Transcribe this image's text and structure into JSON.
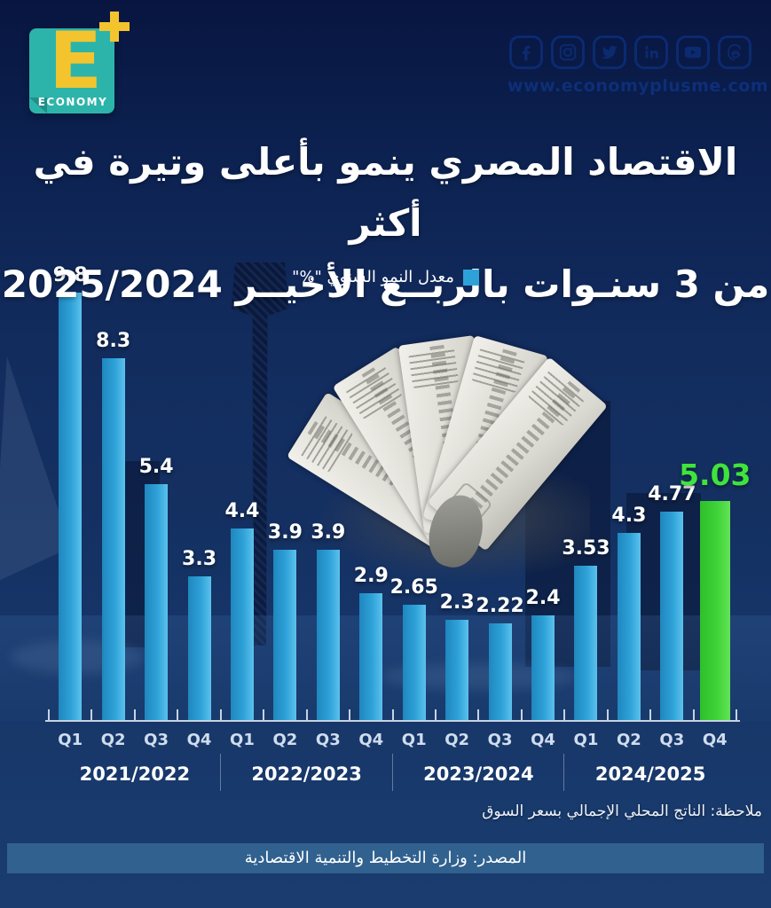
{
  "brand": {
    "logo": {
      "letter": "E",
      "caption": "ECONOMY"
    },
    "website": "www.economyplusme.com",
    "social": [
      "facebook",
      "instagram",
      "twitter",
      "linkedin",
      "youtube",
      "threads"
    ]
  },
  "title": {
    "line1": "الاقتصاد المصري ينمو بأعلى وتيرة في أكثر",
    "line2": "من 3 سنـوات بالربــع الأخيــر 2025/2024"
  },
  "legend": {
    "label": "معدل النمو السنوي \"%\""
  },
  "chart_data": {
    "type": "bar",
    "title": "معدل النمو السنوي \"%\"",
    "categories": [
      "Q1",
      "Q2",
      "Q3",
      "Q4",
      "Q1",
      "Q2",
      "Q3",
      "Q4",
      "Q1",
      "Q2",
      "Q3",
      "Q4",
      "Q1",
      "Q2",
      "Q3",
      "Q4"
    ],
    "values": [
      9.8,
      8.3,
      5.4,
      3.3,
      4.4,
      3.9,
      3.9,
      2.9,
      2.65,
      2.3,
      2.22,
      2.4,
      3.53,
      4.3,
      4.77,
      5.03
    ],
    "labels": [
      "9.8",
      "8.3",
      "5.4",
      "3.3",
      "4.4",
      "3.9",
      "3.9",
      "2.9",
      "2.65",
      "2.3",
      "2.22",
      "2.4",
      "3.53",
      "4.3",
      "4.77",
      "5.03"
    ],
    "year_groups": [
      "2021/2022",
      "2022/2023",
      "2023/2024",
      "2024/2025"
    ],
    "highlight_index": 15,
    "unit": "%",
    "ylim": [
      0,
      10
    ],
    "grid": false,
    "legend_position": "top-center",
    "bar_color": "#2ea2d8",
    "highlight_color": "#3ed337"
  },
  "footnote": "ملاحظة: الناتج المحلي الإجمالي بسعر السوق",
  "source": "المصدر: وزارة التخطيط والتنمية الاقتصادية",
  "decor": {
    "photo": "hand-holding-fanned-egyptian-pound-banknotes",
    "background": "cairo-tower-nile-cityscape-silhouette"
  },
  "colors": {
    "background_top": "#081540",
    "background_bottom": "#1a3c6e",
    "bar": "#2ea2d8",
    "bar_highlight": "#3ed337",
    "source_band": "#30618f",
    "logo_teal": "#2db4aa",
    "logo_yellow": "#f4c42e",
    "watermark_blue": "#0b2a70"
  }
}
